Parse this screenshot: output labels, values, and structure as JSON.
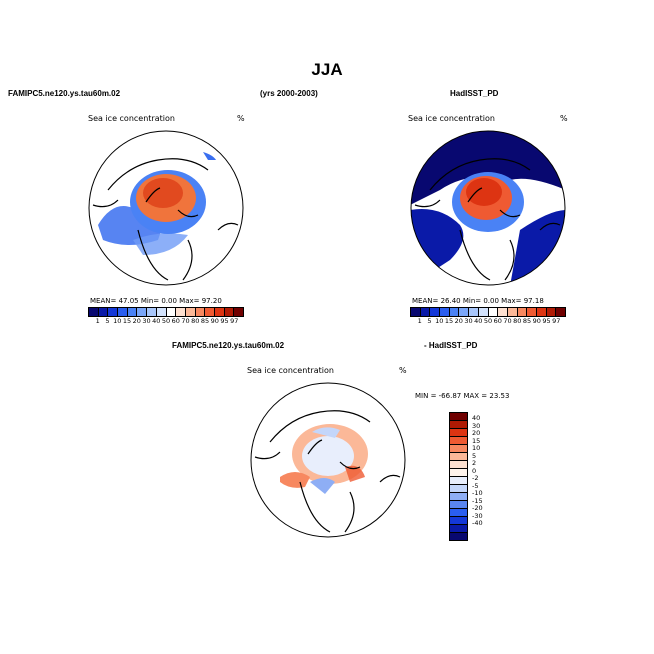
{
  "title": "JJA",
  "header": {
    "left_case": "FAMIPC5.ne120.ys.tau60m.02",
    "years": "(yrs 2000-2003)",
    "right_case": "HadISST_PD"
  },
  "panels": [
    {
      "name": "model",
      "label": "Sea ice concentration",
      "units": "%",
      "stats": "MEAN=   47.05   Min=    0.00   Max=   97.20"
    },
    {
      "name": "obs",
      "label": "Sea ice concentration",
      "units": "%",
      "stats": "MEAN=   26.40   Min=    0.00   Max=   97.18"
    }
  ],
  "diff": {
    "left_title": "FAMIPC5.ne120.ys.tau60m.02",
    "right_title": "- HadISST_PD",
    "label": "Sea ice concentration",
    "units": "%",
    "minmax": "MIN =  -66.87  MAX =   23.53"
  },
  "colorbar": {
    "labels": [
      "1",
      "5",
      "10",
      "15",
      "20",
      "30",
      "40",
      "50",
      "60",
      "70",
      "80",
      "85",
      "90",
      "95",
      "97"
    ],
    "colors": [
      "#080870",
      "#0a1aa8",
      "#1438d8",
      "#2a5ef0",
      "#4a82f5",
      "#7aa6f8",
      "#a8c6fa",
      "#d2e2fc",
      "#ffffff",
      "#fde0d0",
      "#fbb898",
      "#f78860",
      "#ef5a32",
      "#dd3412",
      "#b01a04",
      "#700000"
    ]
  },
  "diff_colorbar": {
    "labels": [
      "40",
      "30",
      "20",
      "15",
      "10",
      "5",
      "2",
      "0",
      "-2",
      "-5",
      "-10",
      "-15",
      "-20",
      "-30",
      "-40"
    ],
    "colors": [
      "#700000",
      "#b01a04",
      "#dd3412",
      "#ef5a32",
      "#f78860",
      "#fbb898",
      "#fde0d0",
      "#fff4ec",
      "#e8eefc",
      "#c4d6fa",
      "#8eaef5",
      "#5a86f0",
      "#2a5ef0",
      "#1438d8",
      "#0a1aa8",
      "#080870"
    ]
  }
}
